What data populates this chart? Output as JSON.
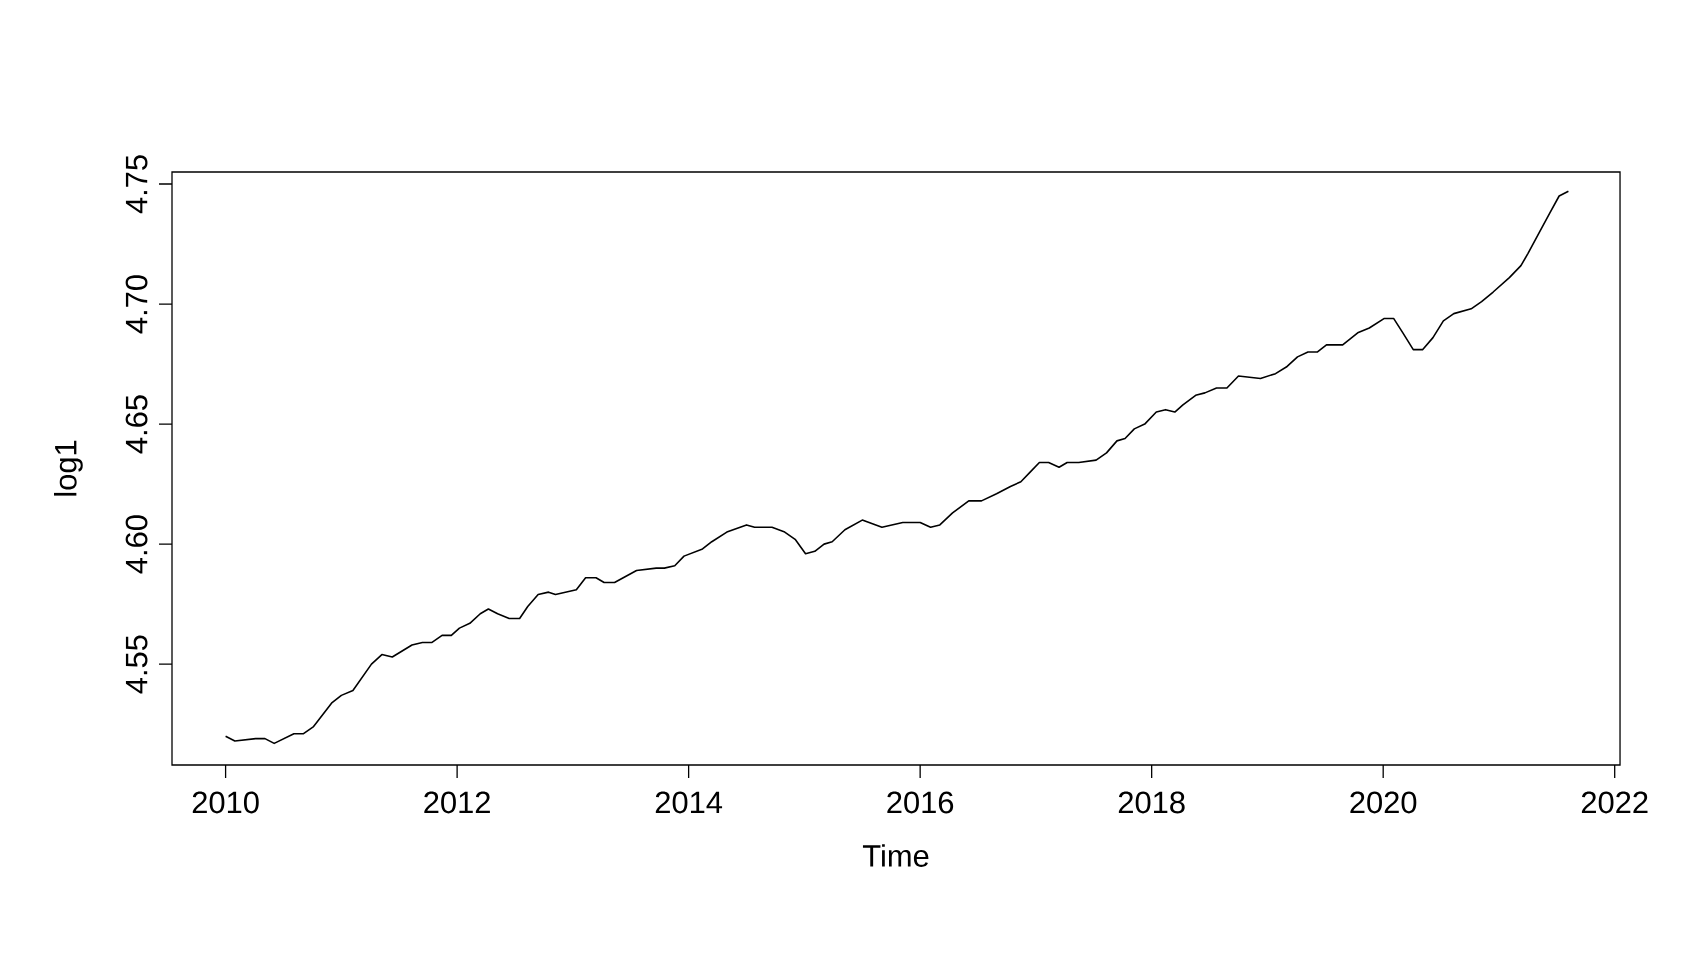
{
  "chart_data": {
    "type": "line",
    "xlabel": "Time",
    "ylabel": "log1",
    "xlim": [
      2009.537,
      2022.046
    ],
    "ylim": [
      4.508,
      4.755
    ],
    "xticks": [
      2010,
      2012,
      2014,
      2016,
      2018,
      2020,
      2022
    ],
    "yticks": [
      4.55,
      {
        "value": 4.6,
        "label": "4.60"
      },
      4.65,
      {
        "value": 4.7,
        "label": "4.70"
      },
      4.75
    ],
    "x": [
      2010.0,
      2010.08,
      2010.26,
      2010.34,
      2010.42,
      2010.59,
      2010.67,
      2010.76,
      2010.92,
      2011.0,
      2011.1,
      2011.26,
      2011.35,
      2011.44,
      2011.61,
      2011.7,
      2011.78,
      2011.87,
      2011.95,
      2012.02,
      2012.11,
      2012.2,
      2012.27,
      2012.35,
      2012.45,
      2012.54,
      2012.61,
      2012.7,
      2012.79,
      2012.85,
      2013.03,
      2013.11,
      2013.2,
      2013.27,
      2013.36,
      2013.55,
      2013.72,
      2013.79,
      2013.88,
      2013.96,
      2014.12,
      2014.2,
      2014.33,
      2014.5,
      2014.57,
      2014.72,
      2014.83,
      2014.92,
      2015.01,
      2015.09,
      2015.17,
      2015.24,
      2015.35,
      2015.5,
      2015.67,
      2015.85,
      2016.0,
      2016.09,
      2016.17,
      2016.28,
      2016.42,
      2016.53,
      2016.66,
      2016.78,
      2016.87,
      2016.95,
      2017.03,
      2017.11,
      2017.2,
      2017.27,
      2017.37,
      2017.52,
      2017.61,
      2017.7,
      2017.77,
      2017.85,
      2017.94,
      2018.04,
      2018.12,
      2018.2,
      2018.27,
      2018.38,
      2018.46,
      2018.56,
      2018.65,
      2018.75,
      2018.94,
      2019.07,
      2019.17,
      2019.26,
      2019.35,
      2019.43,
      2019.51,
      2019.65,
      2019.78,
      2019.88,
      2020.01,
      2020.09,
      2020.17,
      2020.26,
      2020.34,
      2020.43,
      2020.52,
      2020.61,
      2020.76,
      2020.85,
      2020.95,
      2021.09,
      2021.19,
      2021.25,
      2021.35,
      2021.44,
      2021.52,
      2021.6
    ],
    "series": [
      {
        "color": "#000000",
        "values": [
          4.52,
          4.518,
          4.519,
          4.519,
          4.517,
          4.521,
          4.521,
          4.524,
          4.534,
          4.537,
          4.539,
          4.55,
          4.554,
          4.553,
          4.558,
          4.559,
          4.559,
          4.562,
          4.562,
          4.565,
          4.567,
          4.571,
          4.573,
          4.571,
          4.569,
          4.569,
          4.574,
          4.579,
          4.58,
          4.579,
          4.581,
          4.586,
          4.586,
          4.584,
          4.584,
          4.589,
          4.59,
          4.59,
          4.591,
          4.595,
          4.598,
          4.601,
          4.605,
          4.608,
          4.607,
          4.607,
          4.605,
          4.602,
          4.596,
          4.597,
          4.6,
          4.601,
          4.606,
          4.61,
          4.607,
          4.609,
          4.609,
          4.607,
          4.608,
          4.613,
          4.618,
          4.618,
          4.621,
          4.624,
          4.626,
          4.63,
          4.634,
          4.634,
          4.632,
          4.634,
          4.634,
          4.635,
          4.638,
          4.643,
          4.644,
          4.648,
          4.65,
          4.655,
          4.656,
          4.655,
          4.658,
          4.662,
          4.663,
          4.665,
          4.665,
          4.67,
          4.669,
          4.671,
          4.674,
          4.678,
          4.68,
          4.68,
          4.683,
          4.683,
          4.688,
          4.69,
          4.694,
          4.694,
          4.688,
          4.681,
          4.681,
          4.686,
          4.693,
          4.696,
          4.698,
          4.701,
          4.705,
          4.711,
          4.716,
          4.721,
          4.73,
          4.738,
          4.745,
          4.747
        ]
      }
    ]
  }
}
